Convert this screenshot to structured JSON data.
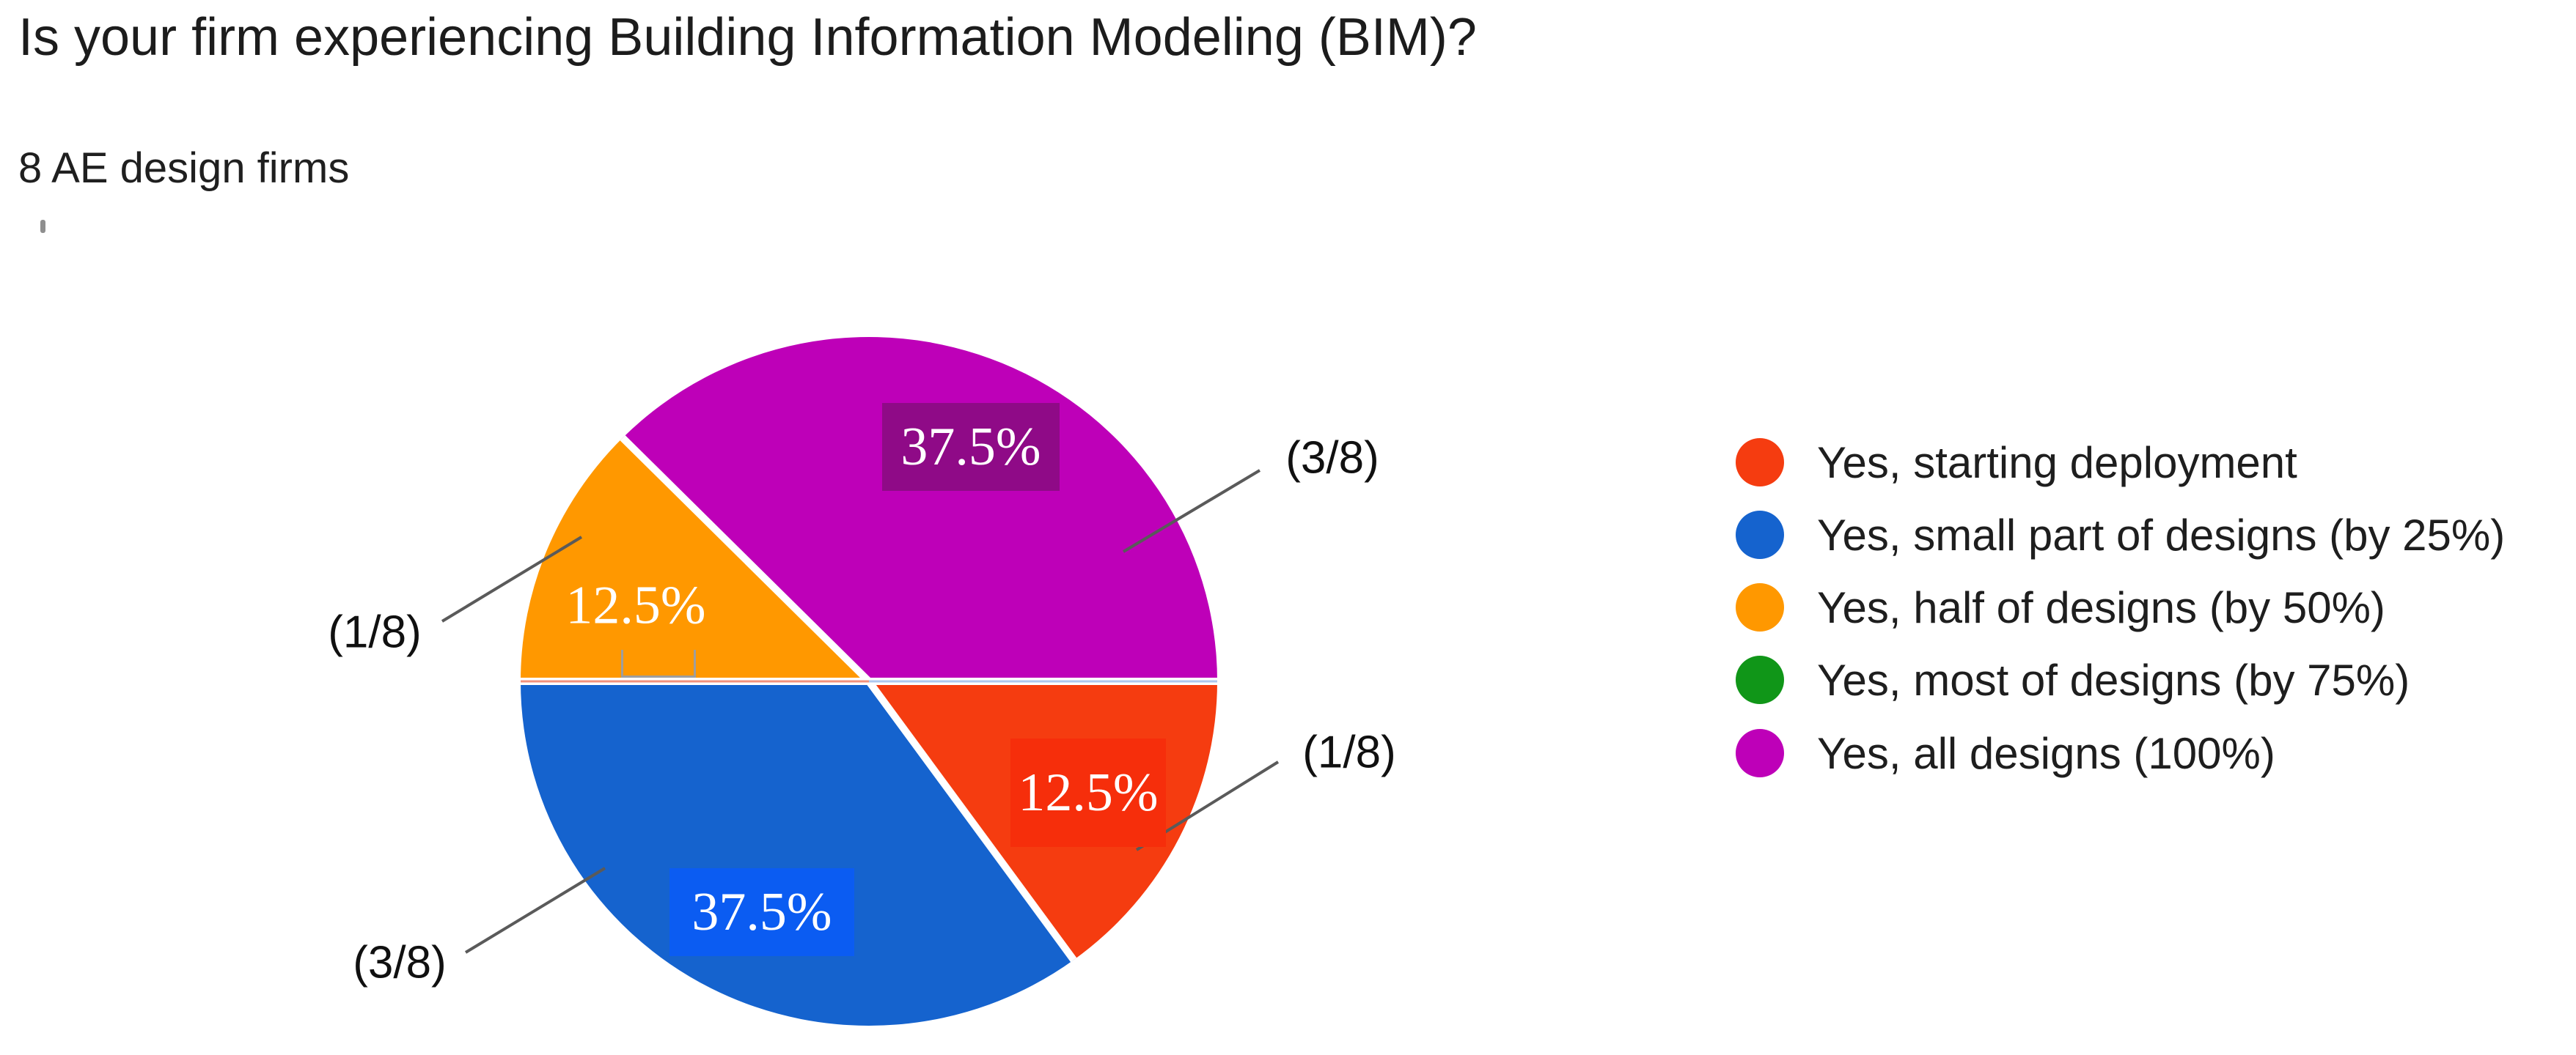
{
  "header": {
    "title": "Is your firm experiencing Building Information Modeling (BIM)?",
    "subtitle": "8 AE design firms"
  },
  "chart_data": {
    "type": "pie",
    "title": "Is your firm experiencing Building Information Modeling (BIM)?",
    "subtitle": "8 AE design firms",
    "total_respondents": 8,
    "legend_position": "right",
    "series": [
      {
        "label": "Yes, starting deployment",
        "value": 1,
        "percent": 12.5,
        "percent_label": "12.5%",
        "fraction_label": "(1/8)",
        "color": "#F53C10"
      },
      {
        "label": "Yes, small part of designs (by 25%)",
        "value": 3,
        "percent": 37.5,
        "percent_label": "37.5%",
        "fraction_label": "(3/8)",
        "color": "#1563CE"
      },
      {
        "label": "Yes, half of designs (by 50%)",
        "value": 1,
        "percent": 12.5,
        "percent_label": "12.5%",
        "fraction_label": "(1/8)",
        "color": "#FF9800"
      },
      {
        "label": "Yes, most of designs (by 75%)",
        "value": 0,
        "percent": 0,
        "percent_label": "",
        "fraction_label": "",
        "color": "#109618"
      },
      {
        "label": "Yes, all designs (100%)",
        "value": 3,
        "percent": 37.5,
        "percent_label": "37.5%",
        "fraction_label": "(3/8)",
        "color": "#BE00B8"
      }
    ]
  },
  "colors": {
    "background": "#FFFFFF",
    "text": "#1C1C1C",
    "callout_line": "#5A5A5A",
    "separator": "#FFFFFF",
    "west_hairline": "#F2917C",
    "east_hairline": "#ADC7EF",
    "bracket": "#9E9E9E",
    "label_box_magenta_fill": "#8F0A87",
    "label_box_magenta_border": "#E712DC",
    "label_box_blue_fill": "#0B5CF2",
    "label_box_red_fill": "#F62E0B"
  }
}
